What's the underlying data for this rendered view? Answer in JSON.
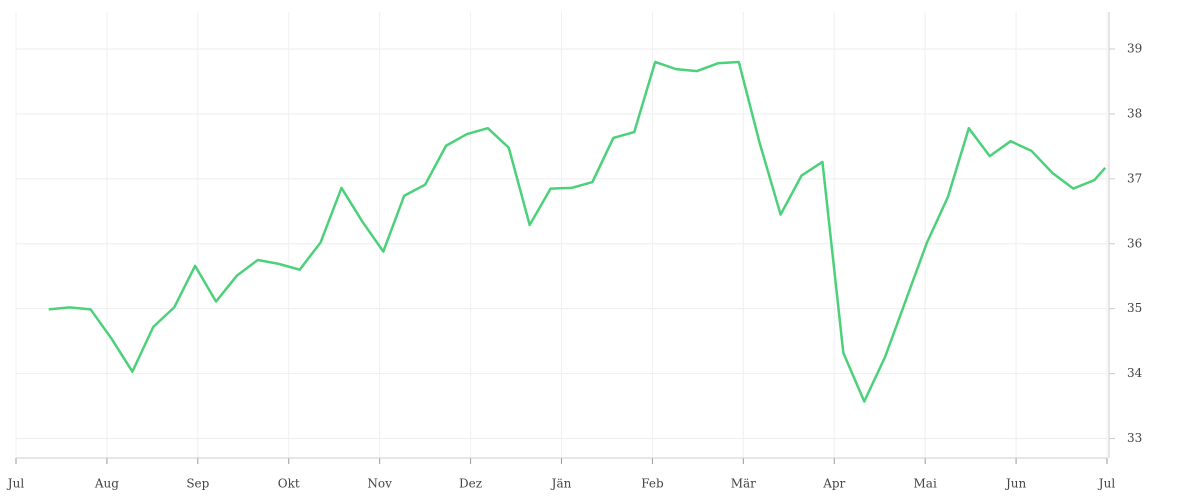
{
  "chart_data": {
    "type": "line",
    "x": [
      0.36,
      0.59,
      0.82,
      1.05,
      1.28,
      1.51,
      1.74,
      1.97,
      2.2,
      2.43,
      2.66,
      2.89,
      3.12,
      3.35,
      3.58,
      3.81,
      4.04,
      4.27,
      4.5,
      4.73,
      4.96,
      5.19,
      5.42,
      5.65,
      5.88,
      6.11,
      6.34,
      6.57,
      6.8,
      7.03,
      7.26,
      7.49,
      7.72,
      7.95,
      8.18,
      8.41,
      8.64,
      8.87,
      9.1,
      9.33,
      9.56,
      9.79,
      10.02,
      10.25,
      10.48,
      10.71,
      10.94,
      11.17,
      11.4,
      11.63,
      11.86,
      11.98
    ],
    "series": [
      {
        "color": "#4cd17a",
        "values": [
          34.99,
          35.02,
          34.99,
          34.54,
          34.03,
          34.72,
          35.02,
          35.66,
          35.11,
          35.51,
          35.75,
          35.69,
          35.6,
          36.02,
          36.86,
          36.34,
          35.88,
          36.74,
          36.91,
          37.51,
          37.69,
          37.78,
          37.48,
          36.29,
          36.85,
          36.86,
          36.95,
          37.63,
          37.72,
          38.8,
          38.69,
          38.66,
          38.78,
          38.8,
          37.55,
          36.45,
          37.05,
          37.26,
          34.32,
          33.57,
          34.26,
          35.14,
          36.02,
          36.72,
          37.78,
          37.35,
          37.58,
          37.43,
          37.09,
          36.85,
          36.98,
          37.17
        ]
      }
    ],
    "xlim": [
      0,
      12
    ],
    "xticks": [
      {
        "value": 0,
        "label": "Jul"
      },
      {
        "value": 1,
        "label": "Aug"
      },
      {
        "value": 2,
        "label": "Sep"
      },
      {
        "value": 3,
        "label": "Okt"
      },
      {
        "value": 4,
        "label": "Nov"
      },
      {
        "value": 5,
        "label": "Dez"
      },
      {
        "value": 6,
        "label": "Jän"
      },
      {
        "value": 7,
        "label": "Feb"
      },
      {
        "value": 8,
        "label": "Mär"
      },
      {
        "value": 9,
        "label": "Apr"
      },
      {
        "value": 10,
        "label": "Mai"
      },
      {
        "value": 11,
        "label": "Jun"
      },
      {
        "value": 12,
        "label": "Jul"
      }
    ],
    "ylim": [
      32.7,
      39.57
    ],
    "yticks": [
      33,
      34,
      35,
      36,
      37,
      38,
      39
    ],
    "grid": true
  }
}
